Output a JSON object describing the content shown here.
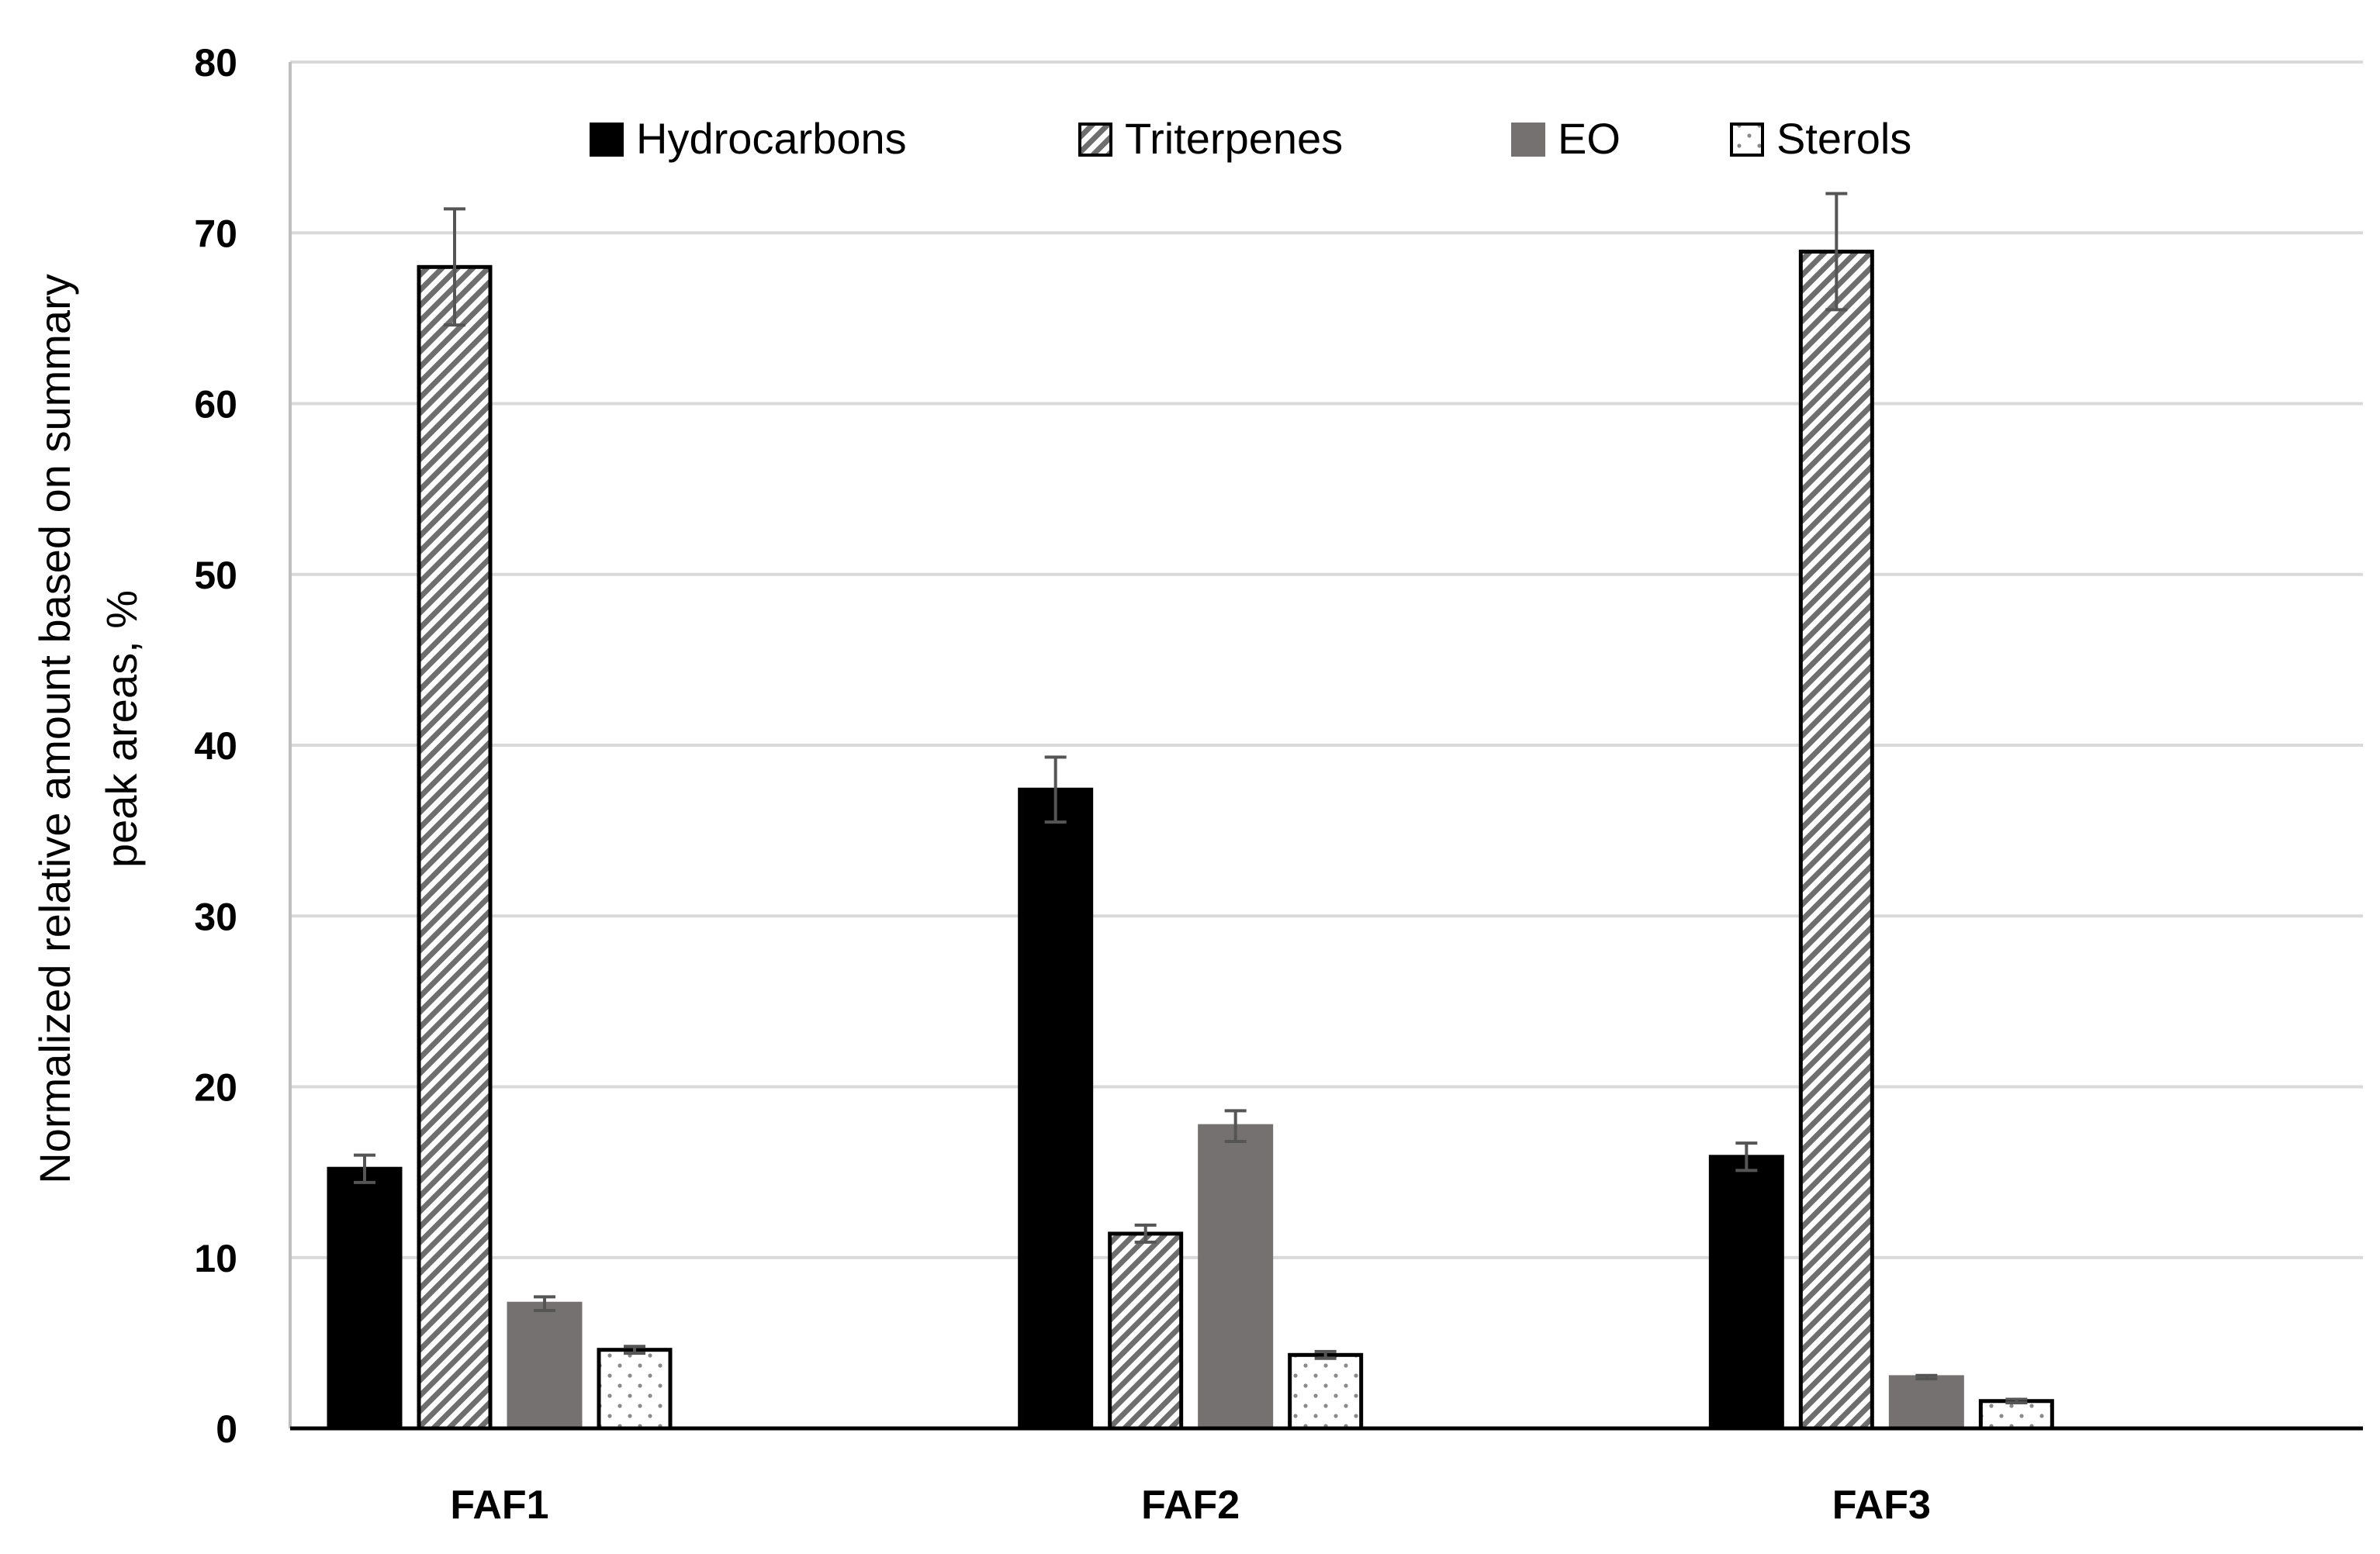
{
  "chart_data": {
    "type": "bar",
    "categories": [
      "FAF1",
      "FAF2",
      "FAF3"
    ],
    "ylabel_line1": "Normalized relative amount based on summary",
    "ylabel_line2": "peak areas,  %",
    "ylim": [
      0,
      80
    ],
    "yticks": [
      "0",
      "10",
      "20",
      "30",
      "40",
      "50",
      "60",
      "70",
      "80"
    ],
    "grid": true,
    "legend_position": "top",
    "series": [
      {
        "name": "Hydrocarbons",
        "values": [
          15.2,
          37.4,
          15.9
        ],
        "errors": [
          0.8,
          1.9,
          0.8
        ],
        "fill": "solid",
        "color": "#000000"
      },
      {
        "name": "Triterpenes",
        "values": [
          68.0,
          11.4,
          68.9
        ],
        "errors": [
          3.4,
          0.5,
          3.4
        ],
        "fill": "hatch",
        "color": "#7f7f7f"
      },
      {
        "name": "EO",
        "values": [
          7.3,
          17.7,
          3.0
        ],
        "errors": [
          0.4,
          0.9,
          0.1
        ],
        "fill": "solid",
        "color": "#767171"
      },
      {
        "name": "Sterols",
        "values": [
          4.6,
          4.3,
          1.6
        ],
        "errors": [
          0.2,
          0.2,
          0.1
        ],
        "fill": "dots",
        "color": "#ffffff"
      }
    ]
  }
}
